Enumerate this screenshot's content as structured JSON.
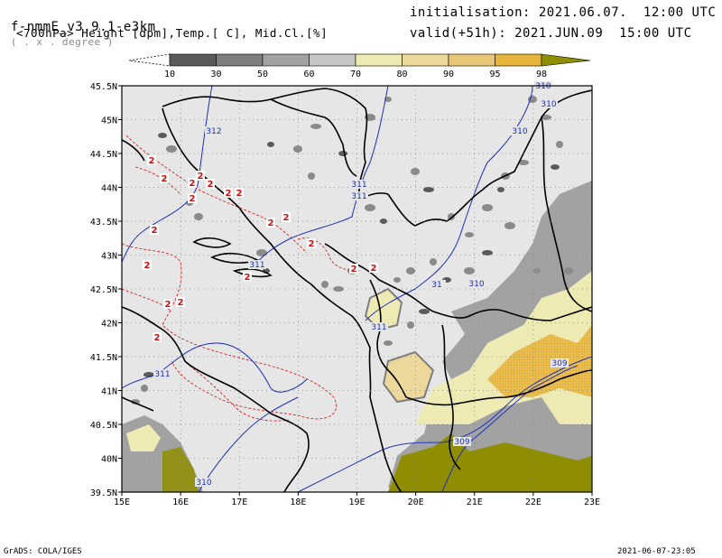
{
  "header": {
    "model": "f-nmmE_v3.9.1-e3km",
    "grid": "( . x . degree )",
    "fields": "<700hPa> Height [dpm],Temp.[ C], Mid.Cl.[%]",
    "init": "initialisation: 2021.06.07.  12:00 UTC",
    "valid": "valid(+51h): 2021.JUN.09  15:00 UTC"
  },
  "colorbar": {
    "labels": [
      "10",
      "30",
      "50",
      "60",
      "70",
      "80",
      "90",
      "95",
      "98"
    ],
    "colors": [
      "#5a5a5a",
      "#7e7e7e",
      "#a2a2a2",
      "#c6c6c6",
      "#eeeab4",
      "#ecd89a",
      "#e8c878",
      "#e6b43a",
      "#8e8e00"
    ]
  },
  "axes": {
    "lon_labels": [
      "15E",
      "16E",
      "17E",
      "18E",
      "19E",
      "20E",
      "21E",
      "22E",
      "23E"
    ],
    "lat_labels": [
      "45.5N",
      "45N",
      "44.5N",
      "44N",
      "43.5N",
      "43N",
      "42.5N",
      "42N",
      "41.5N",
      "41N",
      "40.5N",
      "40N",
      "39.5N"
    ]
  },
  "contours": {
    "height_labels": [
      "312",
      "311",
      "311",
      "311",
      "311",
      "310",
      "310",
      "310",
      "310",
      "309",
      "309",
      "310",
      "311",
      "31"
    ],
    "temp_labels": [
      "2",
      "2",
      "2",
      "2",
      "2",
      "2",
      "2",
      "2",
      "2",
      "2",
      "2",
      "2",
      "2",
      "2",
      "2",
      "2",
      "2",
      "2",
      "2"
    ]
  },
  "colors": {
    "background_land": "#e6e6e6",
    "height_contour": "#1b2fbf",
    "temp_contour": "#d01010",
    "coast": "#000000"
  },
  "footer": {
    "left": "GrADS: COLA/IGES",
    "right": "2021-06-07-23:05"
  }
}
